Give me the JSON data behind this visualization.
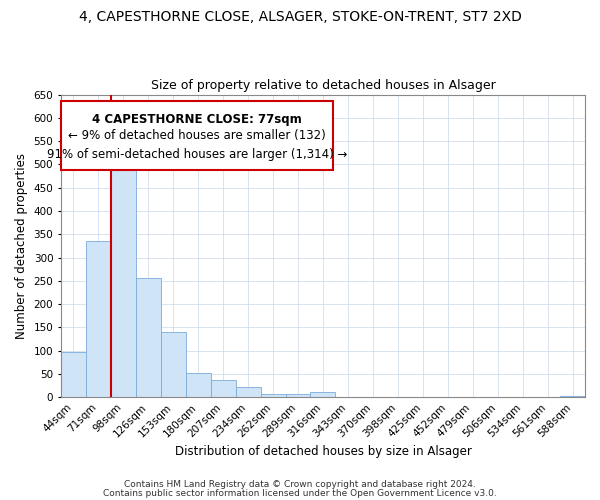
{
  "title": "4, CAPESTHORNE CLOSE, ALSAGER, STOKE-ON-TRENT, ST7 2XD",
  "subtitle": "Size of property relative to detached houses in Alsager",
  "xlabel": "Distribution of detached houses by size in Alsager",
  "ylabel": "Number of detached properties",
  "bar_labels": [
    "44sqm",
    "71sqm",
    "98sqm",
    "126sqm",
    "153sqm",
    "180sqm",
    "207sqm",
    "234sqm",
    "262sqm",
    "289sqm",
    "316sqm",
    "343sqm",
    "370sqm",
    "398sqm",
    "425sqm",
    "452sqm",
    "479sqm",
    "506sqm",
    "534sqm",
    "561sqm",
    "588sqm"
  ],
  "bar_values": [
    97,
    335,
    505,
    255,
    140,
    53,
    38,
    22,
    7,
    7,
    12,
    0,
    0,
    0,
    0,
    0,
    0,
    0,
    0,
    0,
    3
  ],
  "bar_color": "#d0e4f7",
  "bar_edge_color": "#7aabdb",
  "ylim": [
    0,
    650
  ],
  "yticks": [
    0,
    50,
    100,
    150,
    200,
    250,
    300,
    350,
    400,
    450,
    500,
    550,
    600,
    650
  ],
  "annotation_line1": "4 CAPESTHORNE CLOSE: 77sqm",
  "annotation_line2": "← 9% of detached houses are smaller (132)",
  "annotation_line3": "91% of semi-detached houses are larger (1,314) →",
  "footer_line1": "Contains HM Land Registry data © Crown copyright and database right 2024.",
  "footer_line2": "Contains public sector information licensed under the Open Government Licence v3.0.",
  "title_fontsize": 10,
  "subtitle_fontsize": 9,
  "axis_label_fontsize": 8.5,
  "tick_fontsize": 7.5,
  "annotation_fontsize": 8.5,
  "footer_fontsize": 6.5
}
